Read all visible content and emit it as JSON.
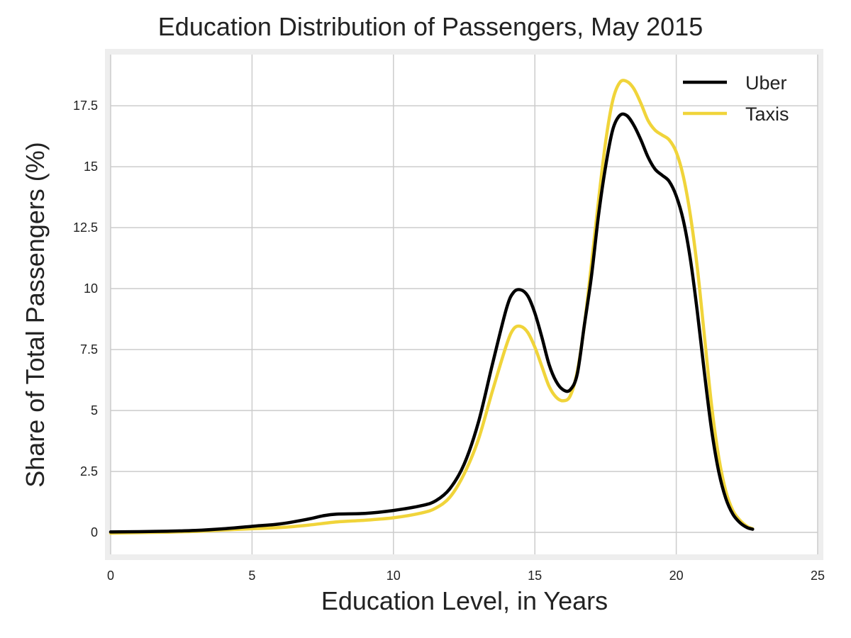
{
  "chart_data": {
    "type": "line",
    "title": "Education Distribution of Passengers, May 2015",
    "xlabel": "Education Level, in Years",
    "ylabel": "Share of Total Passengers (%)",
    "xlim": [
      0,
      25
    ],
    "ylim": [
      -0.9,
      19.6
    ],
    "xticks": [
      0,
      5,
      10,
      15,
      20,
      25
    ],
    "xtick_labels": [
      "0",
      "5",
      "10",
      "15",
      "20",
      "25"
    ],
    "yticks": [
      0,
      2.5,
      5,
      7.5,
      10,
      12.5,
      15,
      17.5
    ],
    "ytick_labels": [
      "0",
      "2.5",
      "5",
      "7.5",
      "10",
      "12.5",
      "15",
      "17.5"
    ],
    "grid": true,
    "legend_position": "top-right",
    "series": [
      {
        "name": "Uber",
        "color": "#000000",
        "points": [
          [
            0,
            0.02
          ],
          [
            1,
            0.03
          ],
          [
            2,
            0.05
          ],
          [
            3,
            0.08
          ],
          [
            4,
            0.15
          ],
          [
            5,
            0.25
          ],
          [
            6,
            0.35
          ],
          [
            7,
            0.55
          ],
          [
            7.5,
            0.68
          ],
          [
            8,
            0.75
          ],
          [
            9,
            0.78
          ],
          [
            10,
            0.9
          ],
          [
            11,
            1.1
          ],
          [
            11.5,
            1.3
          ],
          [
            12,
            1.8
          ],
          [
            12.5,
            2.8
          ],
          [
            13,
            4.5
          ],
          [
            13.5,
            6.9
          ],
          [
            14,
            9.2
          ],
          [
            14.25,
            9.85
          ],
          [
            14.5,
            9.95
          ],
          [
            14.75,
            9.7
          ],
          [
            15,
            9.0
          ],
          [
            15.25,
            8.0
          ],
          [
            15.5,
            6.9
          ],
          [
            15.75,
            6.2
          ],
          [
            16,
            5.85
          ],
          [
            16.25,
            5.85
          ],
          [
            16.5,
            6.5
          ],
          [
            16.75,
            8.5
          ],
          [
            17,
            10.5
          ],
          [
            17.25,
            13.0
          ],
          [
            17.5,
            15.0
          ],
          [
            17.75,
            16.5
          ],
          [
            18,
            17.1
          ],
          [
            18.25,
            17.1
          ],
          [
            18.5,
            16.7
          ],
          [
            18.75,
            16.1
          ],
          [
            19,
            15.4
          ],
          [
            19.25,
            14.9
          ],
          [
            19.5,
            14.65
          ],
          [
            19.75,
            14.4
          ],
          [
            20,
            13.8
          ],
          [
            20.25,
            12.8
          ],
          [
            20.5,
            11.2
          ],
          [
            20.75,
            9.0
          ],
          [
            21,
            6.5
          ],
          [
            21.25,
            4.2
          ],
          [
            21.5,
            2.5
          ],
          [
            21.75,
            1.4
          ],
          [
            22,
            0.75
          ],
          [
            22.25,
            0.4
          ],
          [
            22.5,
            0.2
          ],
          [
            22.7,
            0.13
          ]
        ]
      },
      {
        "name": "Taxis",
        "color": "#f0d43a",
        "points": [
          [
            0,
            -0.03
          ],
          [
            1,
            -0.01
          ],
          [
            2,
            0.01
          ],
          [
            3,
            0.04
          ],
          [
            4,
            0.1
          ],
          [
            5,
            0.15
          ],
          [
            6,
            0.2
          ],
          [
            7,
            0.3
          ],
          [
            8,
            0.43
          ],
          [
            9,
            0.5
          ],
          [
            10,
            0.6
          ],
          [
            11,
            0.8
          ],
          [
            11.5,
            1.0
          ],
          [
            12,
            1.45
          ],
          [
            12.5,
            2.4
          ],
          [
            13,
            3.8
          ],
          [
            13.5,
            5.8
          ],
          [
            14,
            7.7
          ],
          [
            14.25,
            8.35
          ],
          [
            14.5,
            8.45
          ],
          [
            14.75,
            8.2
          ],
          [
            15,
            7.6
          ],
          [
            15.25,
            6.8
          ],
          [
            15.5,
            6.0
          ],
          [
            15.75,
            5.55
          ],
          [
            16,
            5.4
          ],
          [
            16.25,
            5.6
          ],
          [
            16.5,
            6.6
          ],
          [
            16.75,
            8.5
          ],
          [
            17,
            11.0
          ],
          [
            17.25,
            13.6
          ],
          [
            17.5,
            16.0
          ],
          [
            17.75,
            17.7
          ],
          [
            18,
            18.45
          ],
          [
            18.25,
            18.5
          ],
          [
            18.5,
            18.2
          ],
          [
            18.75,
            17.6
          ],
          [
            19,
            16.9
          ],
          [
            19.25,
            16.5
          ],
          [
            19.5,
            16.3
          ],
          [
            19.75,
            16.1
          ],
          [
            20,
            15.6
          ],
          [
            20.25,
            14.6
          ],
          [
            20.5,
            13.0
          ],
          [
            20.75,
            10.8
          ],
          [
            21,
            8.0
          ],
          [
            21.25,
            5.2
          ],
          [
            21.5,
            3.1
          ],
          [
            21.75,
            1.7
          ],
          [
            22,
            0.9
          ],
          [
            22.25,
            0.5
          ],
          [
            22.5,
            0.25
          ],
          [
            22.7,
            0.15
          ]
        ]
      }
    ]
  }
}
